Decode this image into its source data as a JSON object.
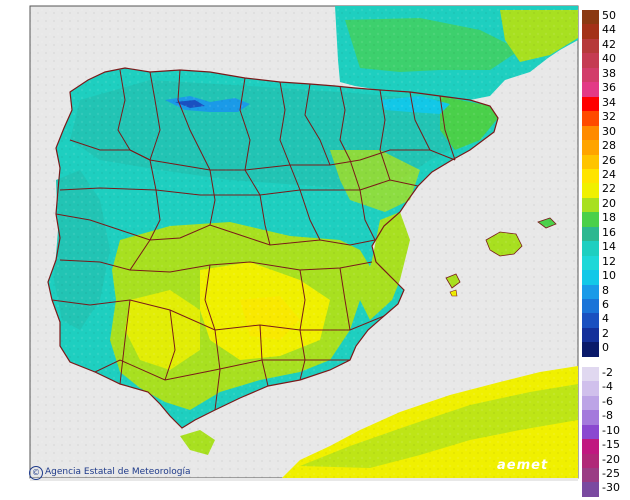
{
  "map": {
    "credit": "Agencia Estatal de Meteorología",
    "credit_symbol": "©",
    "logo": "aemet",
    "sea_color": "#e8e8e8",
    "border_color": "#7a1a1a"
  },
  "legend": [
    {
      "label": "50",
      "color": "#8b3a12"
    },
    {
      "label": "44",
      "color": "#a33218"
    },
    {
      "label": "42",
      "color": "#b63a3a"
    },
    {
      "label": "40",
      "color": "#c53b52"
    },
    {
      "label": "38",
      "color": "#d23d6a"
    },
    {
      "label": "36",
      "color": "#e33a86"
    },
    {
      "label": "34",
      "color": "#ff0000"
    },
    {
      "label": "32",
      "color": "#ff4a00"
    },
    {
      "label": "30",
      "color": "#ff8a00"
    },
    {
      "label": "28",
      "color": "#ffa400"
    },
    {
      "label": "26",
      "color": "#ffc400"
    },
    {
      "label": "24",
      "color": "#ffe400"
    },
    {
      "label": "22",
      "color": "#f0f000"
    },
    {
      "label": "20",
      "color": "#a8e020"
    },
    {
      "label": "18",
      "color": "#4ad04a"
    },
    {
      "label": "16",
      "color": "#2cb890"
    },
    {
      "label": "14",
      "color": "#1ecfc0"
    },
    {
      "label": "12",
      "color": "#1ed8d8"
    },
    {
      "label": "10",
      "color": "#12c8e8"
    },
    {
      "label": "8",
      "color": "#1a9ae8"
    },
    {
      "label": "6",
      "color": "#1a74d8"
    },
    {
      "label": "4",
      "color": "#1a50c0"
    },
    {
      "label": "2",
      "color": "#14309a"
    },
    {
      "label": "0",
      "color": "#0a1a6a"
    },
    {
      "label": "-2",
      "color": "#e0d8f0"
    },
    {
      "label": "-4",
      "color": "#d0c0ec"
    },
    {
      "label": "-6",
      "color": "#bca4e6"
    },
    {
      "label": "-8",
      "color": "#a47adc"
    },
    {
      "label": "-10",
      "color": "#8a48d0"
    },
    {
      "label": "-15",
      "color": "#c01880"
    },
    {
      "label": "-20",
      "color": "#b02878"
    },
    {
      "label": "-25",
      "color": "#9a3c84"
    },
    {
      "label": "-30",
      "color": "#7a4aa0"
    }
  ]
}
